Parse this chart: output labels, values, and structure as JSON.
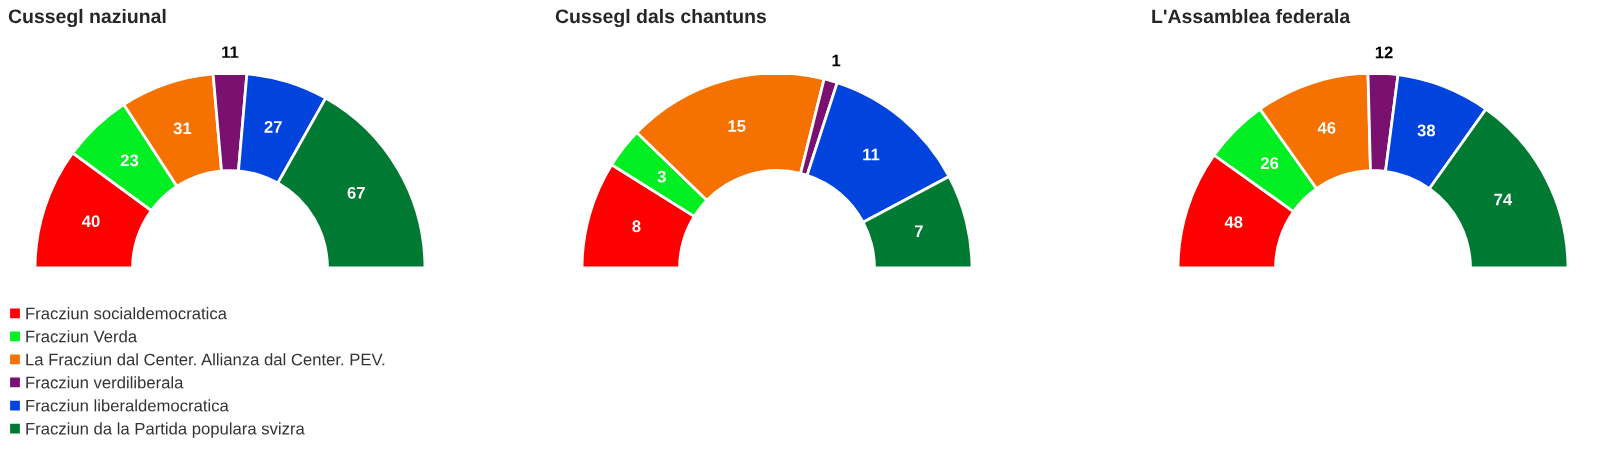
{
  "chart_data": [
    {
      "type": "donut",
      "title": "Cussegl naziunal",
      "categories": [
        "Fracziun socialdemocratica",
        "Fracziun Verda",
        "La Fracziun dal Center. Allianza dal Center. PEV.",
        "Fracziun verdiliberala",
        "Fracziun liberaldemocratica",
        "Fracziun da la Partida populara svizra"
      ],
      "values": [
        40,
        23,
        31,
        11,
        27,
        67
      ],
      "colors": [
        "#ff0000",
        "#00ee22",
        "#f57200",
        "#7a1070",
        "#0044dd",
        "#007a33"
      ],
      "data_labels": true,
      "legend": "bottom left"
    },
    {
      "type": "donut",
      "title": "Cussegl dals chantuns",
      "categories": [
        null,
        null,
        null,
        null,
        null,
        null
      ],
      "values": [
        8,
        3,
        15,
        1,
        11,
        7
      ],
      "colors": [
        "#ff0000",
        "#00ee22",
        "#f57200",
        "#7a1070",
        "#0044dd",
        "#007a33"
      ],
      "data_labels": true
    },
    {
      "type": "donut",
      "title": "L'Assamblea federala",
      "categories": [
        null,
        null,
        null,
        null,
        null,
        null
      ],
      "values": [
        48,
        26,
        46,
        12,
        38,
        74
      ],
      "colors": [
        "#ff0000",
        "#00ee22",
        "#f57200",
        "#7a1070",
        "#0044dd",
        "#007a33"
      ],
      "data_labels": true
    }
  ]
}
